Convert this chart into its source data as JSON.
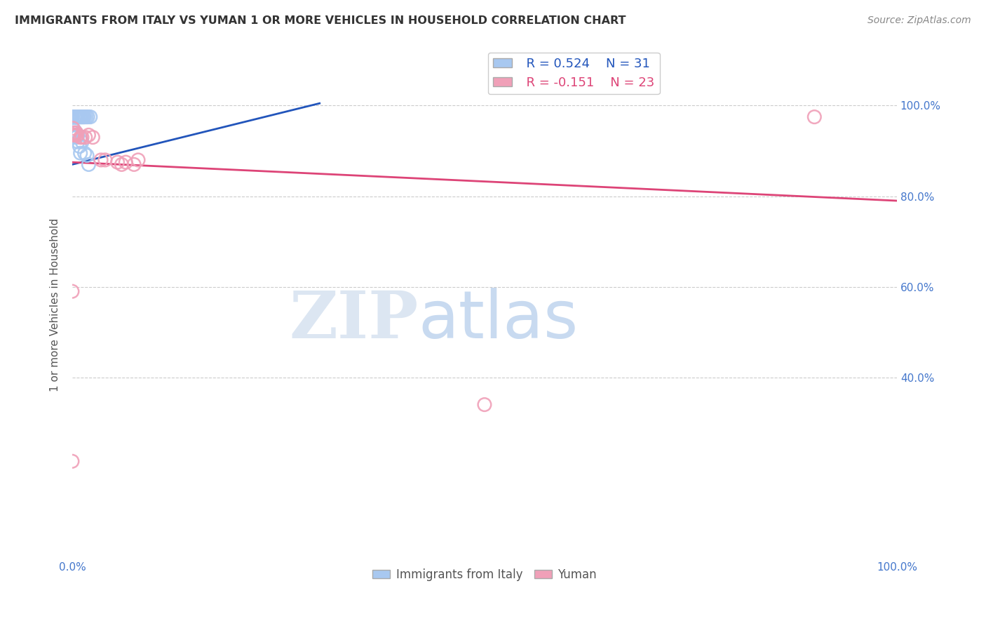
{
  "title": "IMMIGRANTS FROM ITALY VS YUMAN 1 OR MORE VEHICLES IN HOUSEHOLD CORRELATION CHART",
  "source": "Source: ZipAtlas.com",
  "ylabel": "1 or more Vehicles in Household",
  "legend_label1": "Immigrants from Italy",
  "legend_label2": "Yuman",
  "r1": 0.524,
  "n1": 31,
  "r2": -0.151,
  "n2": 23,
  "blue_color": "#a8c8f0",
  "pink_color": "#f0a0b8",
  "blue_line_color": "#2255bb",
  "pink_line_color": "#dd4477",
  "title_color": "#333333",
  "axis_label_color": "#555555",
  "tick_color": "#4477cc",
  "grid_color": "#cccccc",
  "watermark_zip_color": "#dce6f2",
  "watermark_atlas_color": "#c8daf0",
  "blue_points": [
    [
      0.0,
      0.975
    ],
    [
      0.0,
      0.975
    ],
    [
      0.003,
      0.975
    ],
    [
      0.004,
      0.975
    ],
    [
      0.005,
      0.975
    ],
    [
      0.005,
      0.975
    ],
    [
      0.006,
      0.975
    ],
    [
      0.007,
      0.975
    ],
    [
      0.008,
      0.975
    ],
    [
      0.009,
      0.975
    ],
    [
      0.01,
      0.975
    ],
    [
      0.011,
      0.975
    ],
    [
      0.012,
      0.975
    ],
    [
      0.013,
      0.975
    ],
    [
      0.014,
      0.975
    ],
    [
      0.015,
      0.975
    ],
    [
      0.017,
      0.975
    ],
    [
      0.019,
      0.975
    ],
    [
      0.022,
      0.975
    ],
    [
      0.0,
      0.93
    ],
    [
      0.002,
      0.94
    ],
    [
      0.003,
      0.945
    ],
    [
      0.005,
      0.93
    ],
    [
      0.007,
      0.935
    ],
    [
      0.007,
      0.92
    ],
    [
      0.009,
      0.91
    ],
    [
      0.01,
      0.895
    ],
    [
      0.012,
      0.92
    ],
    [
      0.015,
      0.895
    ],
    [
      0.018,
      0.89
    ],
    [
      0.02,
      0.87
    ]
  ],
  "pink_points": [
    [
      0.0,
      0.935
    ],
    [
      0.001,
      0.95
    ],
    [
      0.002,
      0.935
    ],
    [
      0.003,
      0.94
    ],
    [
      0.004,
      0.935
    ],
    [
      0.005,
      0.94
    ],
    [
      0.006,
      0.935
    ],
    [
      0.01,
      0.93
    ],
    [
      0.012,
      0.93
    ],
    [
      0.016,
      0.93
    ],
    [
      0.02,
      0.935
    ],
    [
      0.0,
      0.59
    ],
    [
      0.0,
      0.215
    ],
    [
      0.025,
      0.93
    ],
    [
      0.035,
      0.88
    ],
    [
      0.04,
      0.88
    ],
    [
      0.055,
      0.875
    ],
    [
      0.06,
      0.87
    ],
    [
      0.065,
      0.875
    ],
    [
      0.075,
      0.87
    ],
    [
      0.08,
      0.88
    ],
    [
      0.5,
      0.34
    ],
    [
      0.9,
      0.975
    ]
  ],
  "blue_trendline": [
    [
      0.0,
      0.87
    ],
    [
      0.3,
      1.005
    ]
  ],
  "pink_trendline": [
    [
      0.0,
      0.875
    ],
    [
      1.0,
      0.79
    ]
  ],
  "xmin": 0.0,
  "xmax": 1.0,
  "ymin": 0.0,
  "ymax": 1.12
}
